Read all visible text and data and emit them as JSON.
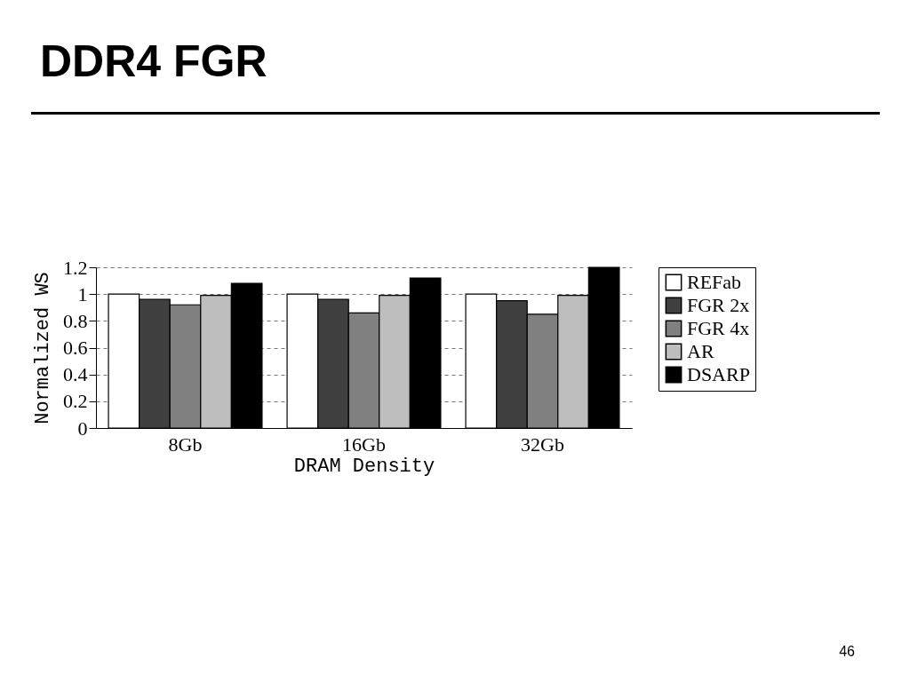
{
  "chart_data": {
    "type": "bar",
    "title": "DDR4 FGR",
    "xlabel": "DRAM Density",
    "ylabel": "Normalized WS",
    "categories": [
      "8Gb",
      "16Gb",
      "32Gb"
    ],
    "series": [
      {
        "name": "REFab",
        "color": "#ffffff",
        "values": [
          1.0,
          1.0,
          1.0
        ]
      },
      {
        "name": "FGR 2x",
        "color": "#404040",
        "values": [
          0.96,
          0.96,
          0.95
        ]
      },
      {
        "name": "FGR 4x",
        "color": "#808080",
        "values": [
          0.92,
          0.86,
          0.85
        ]
      },
      {
        "name": "AR",
        "color": "#bebebe",
        "values": [
          0.99,
          0.99,
          0.99
        ]
      },
      {
        "name": "DSARP",
        "color": "#000000",
        "values": [
          1.08,
          1.12,
          1.2
        ]
      }
    ],
    "ylim": [
      0,
      1.2
    ],
    "yticks": [
      0,
      0.2,
      0.4,
      0.6,
      0.8,
      1,
      1.2
    ],
    "grid": "y",
    "legend": "top right",
    "annotations": [
      "46"
    ]
  }
}
